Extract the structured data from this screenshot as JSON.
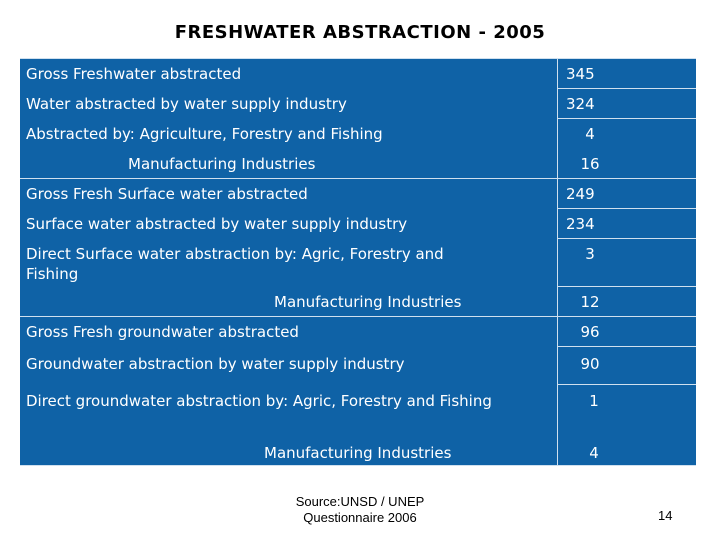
{
  "title": "FRESHWATER ABSTRACTION - 2005",
  "rows": [
    {
      "label": "Gross Freshwater abstracted",
      "value": "345"
    },
    {
      "label": "Water abstracted by water supply industry",
      "value": "324"
    },
    {
      "label": "Abstracted by: Agriculture, Forestry and Fishing",
      "value": "4"
    },
    {
      "label": "Manufacturing Industries",
      "value": "16"
    },
    {
      "label": "Gross Fresh Surface water abstracted",
      "value": "249"
    },
    {
      "label": "Surface water abstracted by water supply industry",
      "value": "234"
    },
    {
      "label": "Direct Surface water abstraction by: Agric, Forestry and Fishing",
      "value": "3"
    },
    {
      "label": "Manufacturing Industries",
      "value": "12"
    },
    {
      "label": "Gross Fresh groundwater abstracted",
      "value": "96"
    },
    {
      "label": "Groundwater abstraction by water supply industry",
      "value": "90"
    },
    {
      "label": "Direct groundwater abstraction by: Agric, Forestry and Fishing",
      "value": "1"
    },
    {
      "label": "Manufacturing Industries",
      "value": "4"
    }
  ],
  "source": {
    "line1": "Source:UNSD / UNEP",
    "line2": "Questionnaire 2006"
  },
  "page_number": "14",
  "colors": {
    "table_bg": "#0f62a6",
    "text": "#ffffff",
    "grid": "#cfe0ef"
  }
}
